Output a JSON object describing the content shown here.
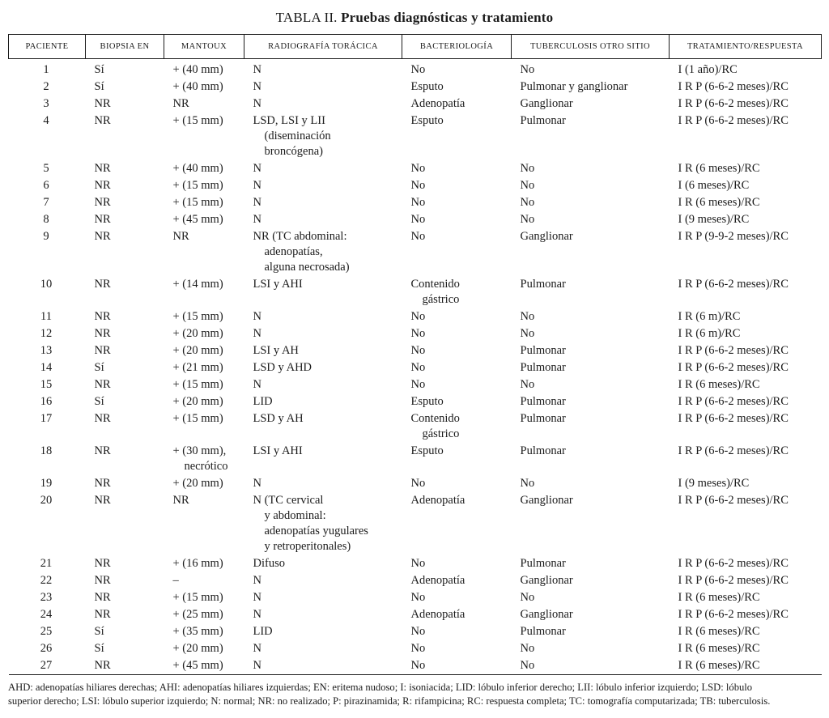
{
  "title": {
    "prefix": "TABLA II.",
    "bold": "Pruebas diagnósticas y tratamiento"
  },
  "table": {
    "columns": [
      "PACIENTE",
      "BIOPSIA EN",
      "MANTOUX",
      "RADIOGRAFÍA TORÁCICA",
      "BACTERIOLOGÍA",
      "TUBERCULOSIS OTRO SITIO",
      "TRATAMIENTO/RESPUESTA"
    ],
    "column_names": [
      "cell-paciente",
      "cell-biopsia-en",
      "cell-mantoux",
      "cell-radiografia-toracica",
      "cell-bacteriologia",
      "cell-tuberculosis-otro-sitio",
      "cell-tratamiento-respuesta"
    ],
    "rows": [
      [
        [
          "1"
        ],
        [
          "Sí"
        ],
        [
          "+ (40 mm)"
        ],
        [
          "N"
        ],
        [
          "No"
        ],
        [
          "No"
        ],
        [
          "I (1 año)/RC"
        ]
      ],
      [
        [
          "2"
        ],
        [
          "Sí"
        ],
        [
          "+ (40 mm)"
        ],
        [
          "N"
        ],
        [
          "Esputo"
        ],
        [
          "Pulmonar y ganglionar"
        ],
        [
          "I R P (6-6-2 meses)/RC"
        ]
      ],
      [
        [
          "3"
        ],
        [
          "NR"
        ],
        [
          "NR"
        ],
        [
          "N"
        ],
        [
          "Adenopatía"
        ],
        [
          "Ganglionar"
        ],
        [
          "I R P (6-6-2 meses)/RC"
        ]
      ],
      [
        [
          "4"
        ],
        [
          "NR"
        ],
        [
          "+ (15 mm)"
        ],
        [
          "LSD, LSI y LII",
          "(diseminación",
          "broncógena)"
        ],
        [
          "Esputo"
        ],
        [
          "Pulmonar"
        ],
        [
          "I R P (6-6-2 meses)/RC"
        ]
      ],
      [
        [
          "5"
        ],
        [
          "NR"
        ],
        [
          "+ (40 mm)"
        ],
        [
          "N"
        ],
        [
          "No"
        ],
        [
          "No"
        ],
        [
          "I R (6 meses)/RC"
        ]
      ],
      [
        [
          "6"
        ],
        [
          "NR"
        ],
        [
          "+ (15 mm)"
        ],
        [
          "N"
        ],
        [
          "No"
        ],
        [
          "No"
        ],
        [
          "I (6 meses)/RC"
        ]
      ],
      [
        [
          "7"
        ],
        [
          "NR"
        ],
        [
          "+ (15 mm)"
        ],
        [
          "N"
        ],
        [
          "No"
        ],
        [
          "No"
        ],
        [
          "I R (6 meses)/RC"
        ]
      ],
      [
        [
          "8"
        ],
        [
          "NR"
        ],
        [
          "+ (45 mm)"
        ],
        [
          "N"
        ],
        [
          "No"
        ],
        [
          "No"
        ],
        [
          "I (9 meses)/RC"
        ]
      ],
      [
        [
          "9"
        ],
        [
          "NR"
        ],
        [
          "NR"
        ],
        [
          "NR (TC abdominal:",
          "adenopatías,",
          "alguna necrosada)"
        ],
        [
          "No"
        ],
        [
          "Ganglionar"
        ],
        [
          "I R P (9-9-2 meses)/RC"
        ]
      ],
      [
        [
          "10"
        ],
        [
          "NR"
        ],
        [
          "+ (14 mm)"
        ],
        [
          "LSI y AHI"
        ],
        [
          "Contenido",
          "gástrico"
        ],
        [
          "Pulmonar"
        ],
        [
          "I R P (6-6-2 meses)/RC"
        ]
      ],
      [
        [
          "11"
        ],
        [
          "NR"
        ],
        [
          "+ (15 mm)"
        ],
        [
          "N"
        ],
        [
          "No"
        ],
        [
          "No"
        ],
        [
          "I R (6 m)/RC"
        ]
      ],
      [
        [
          "12"
        ],
        [
          "NR"
        ],
        [
          "+ (20 mm)"
        ],
        [
          "N"
        ],
        [
          "No"
        ],
        [
          "No"
        ],
        [
          "I R (6 m)/RC"
        ]
      ],
      [
        [
          "13"
        ],
        [
          "NR"
        ],
        [
          "+ (20 mm)"
        ],
        [
          "LSI y AH"
        ],
        [
          "No"
        ],
        [
          "Pulmonar"
        ],
        [
          "I R P (6-6-2 meses)/RC"
        ]
      ],
      [
        [
          "14"
        ],
        [
          "Sí"
        ],
        [
          "+ (21 mm)"
        ],
        [
          "LSD y AHD"
        ],
        [
          "No"
        ],
        [
          "Pulmonar"
        ],
        [
          "I R P (6-6-2 meses)/RC"
        ]
      ],
      [
        [
          "15"
        ],
        [
          "NR"
        ],
        [
          "+ (15 mm)"
        ],
        [
          "N"
        ],
        [
          "No"
        ],
        [
          "No"
        ],
        [
          "I R (6 meses)/RC"
        ]
      ],
      [
        [
          "16"
        ],
        [
          "Sí"
        ],
        [
          "+ (20 mm)"
        ],
        [
          "LID"
        ],
        [
          "Esputo"
        ],
        [
          "Pulmonar"
        ],
        [
          "I R P (6-6-2 meses)/RC"
        ]
      ],
      [
        [
          "17"
        ],
        [
          "NR"
        ],
        [
          "+ (15 mm)"
        ],
        [
          "LSD y AH"
        ],
        [
          "Contenido",
          "gástrico"
        ],
        [
          "Pulmonar"
        ],
        [
          "I R P (6-6-2 meses)/RC"
        ]
      ],
      [
        [
          "18"
        ],
        [
          "NR"
        ],
        [
          "+ (30 mm),",
          "necrótico"
        ],
        [
          "LSI y AHI"
        ],
        [
          "Esputo"
        ],
        [
          "Pulmonar"
        ],
        [
          "I R P (6-6-2 meses)/RC"
        ]
      ],
      [
        [
          "19"
        ],
        [
          "NR"
        ],
        [
          "+ (20 mm)"
        ],
        [
          "N"
        ],
        [
          "No"
        ],
        [
          "No"
        ],
        [
          "I (9 meses)/RC"
        ]
      ],
      [
        [
          "20"
        ],
        [
          "NR"
        ],
        [
          "NR"
        ],
        [
          "N (TC cervical",
          "y abdominal:",
          "adenopatías yugulares",
          "y retroperitonales)"
        ],
        [
          "Adenopatía"
        ],
        [
          "Ganglionar"
        ],
        [
          "I R P (6-6-2 meses)/RC"
        ]
      ],
      [
        [
          "21"
        ],
        [
          "NR"
        ],
        [
          "+ (16 mm)"
        ],
        [
          "Difuso"
        ],
        [
          "No"
        ],
        [
          "Pulmonar"
        ],
        [
          "I R P (6-6-2 meses)/RC"
        ]
      ],
      [
        [
          "22"
        ],
        [
          "NR"
        ],
        [
          "–"
        ],
        [
          "N"
        ],
        [
          "Adenopatía"
        ],
        [
          "Ganglionar"
        ],
        [
          "I R P (6-6-2 meses)/RC"
        ]
      ],
      [
        [
          "23"
        ],
        [
          "NR"
        ],
        [
          "+ (15 mm)"
        ],
        [
          "N"
        ],
        [
          "No"
        ],
        [
          "No"
        ],
        [
          "I R (6 meses)/RC"
        ]
      ],
      [
        [
          "24"
        ],
        [
          "NR"
        ],
        [
          "+ (25 mm)"
        ],
        [
          "N"
        ],
        [
          "Adenopatía"
        ],
        [
          "Ganglionar"
        ],
        [
          "I R P (6-6-2 meses)/RC"
        ]
      ],
      [
        [
          "25"
        ],
        [
          "Sí"
        ],
        [
          "+ (35 mm)"
        ],
        [
          "LID"
        ],
        [
          "No"
        ],
        [
          "Pulmonar"
        ],
        [
          "I R (6 meses)/RC"
        ]
      ],
      [
        [
          "26"
        ],
        [
          "Sí"
        ],
        [
          "+ (20 mm)"
        ],
        [
          "N"
        ],
        [
          "No"
        ],
        [
          "No"
        ],
        [
          "I R (6 meses)/RC"
        ]
      ],
      [
        [
          "27"
        ],
        [
          "NR"
        ],
        [
          "+ (45 mm)"
        ],
        [
          "N"
        ],
        [
          "No"
        ],
        [
          "No"
        ],
        [
          "I R (6 meses)/RC"
        ]
      ]
    ]
  },
  "footnote_lines": [
    "AHD: adenopatías hiliares derechas; AHI: adenopatías hiliares izquierdas; EN: eritema nudoso; I: isoniacida; LID: lóbulo inferior derecho; LII: lóbulo inferior izquierdo; LSD: lóbulo",
    "superior derecho; LSI: lóbulo superior izquierdo; N: normal; NR: no realizado; P: pirazinamida; R: rifampicina; RC: respuesta completa; TC: tomografía computarizada; TB: tuberculosis."
  ]
}
